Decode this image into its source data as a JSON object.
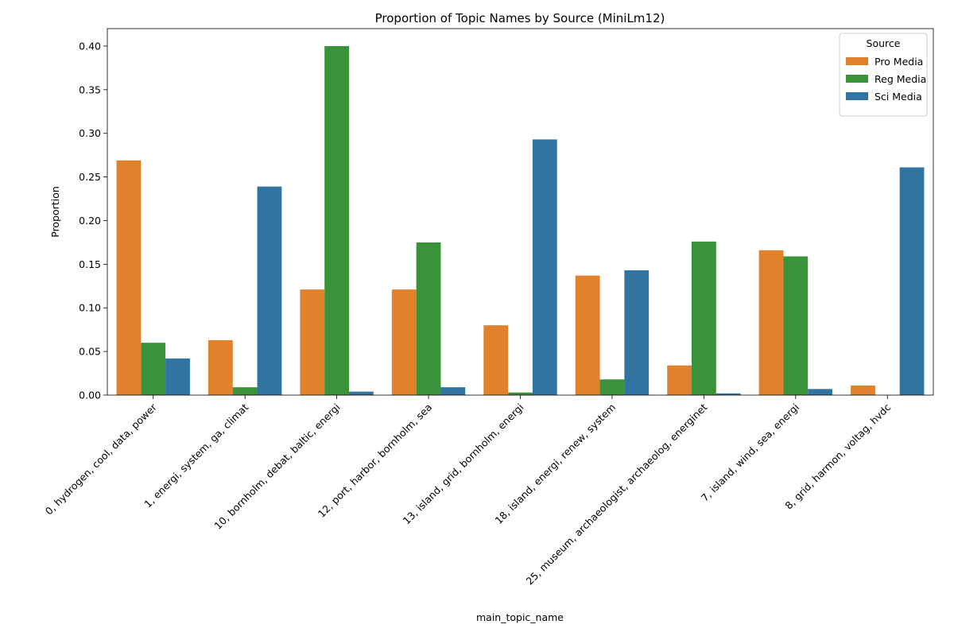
{
  "chart_data": {
    "type": "bar",
    "title": "Proportion of Topic Names by Source (MiniLm12)",
    "xlabel": "main_topic_name",
    "ylabel": "Proportion",
    "ylim": [
      0,
      0.42
    ],
    "yticks": [
      "0.00",
      "0.05",
      "0.10",
      "0.15",
      "0.20",
      "0.25",
      "0.30",
      "0.35",
      "0.40"
    ],
    "grid": false,
    "legend": {
      "title": "Source",
      "placement": "top-right"
    },
    "categories": [
      "0, hydrogen, cool, data, power",
      "1, energi, system, ga, climat",
      "10, bornholm, debat, baltic, energi",
      "12, port, harbor, bornholm, sea",
      "13, island, grid, bornholm, energi",
      "18, island, energi, renew, system",
      "25, museum, archaeologist, archaeolog, energinet",
      "7, island, wind, sea, energi",
      "8, grid, harmon, voltag, hvdc"
    ],
    "series": [
      {
        "name": "Pro Media",
        "color": "#e1812c",
        "values": [
          0.269,
          0.063,
          0.121,
          0.121,
          0.08,
          0.137,
          0.034,
          0.166,
          0.011
        ]
      },
      {
        "name": "Reg Media",
        "color": "#3a923a",
        "values": [
          0.06,
          0.009,
          0.4,
          0.175,
          0.003,
          0.018,
          0.176,
          0.159,
          0.0
        ]
      },
      {
        "name": "Sci Media",
        "color": "#3274a1",
        "values": [
          0.042,
          0.239,
          0.004,
          0.009,
          0.293,
          0.143,
          0.002,
          0.007,
          0.261
        ]
      }
    ]
  }
}
